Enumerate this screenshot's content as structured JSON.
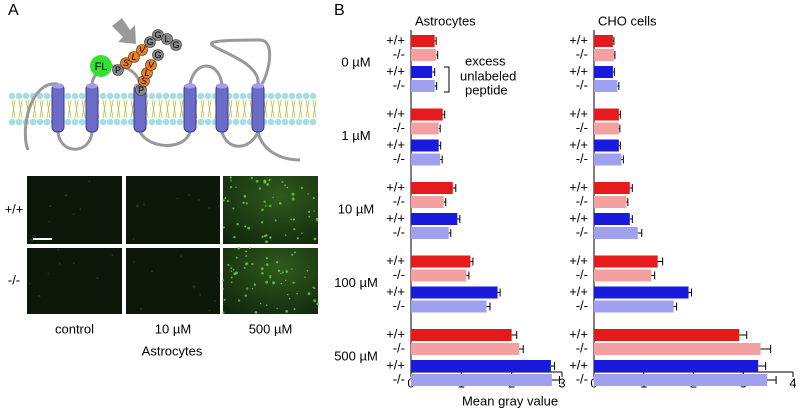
{
  "panel_a": {
    "label": "A",
    "fluorophore": "FL",
    "peptide_1": [
      "P",
      "S",
      "L",
      "V",
      "G",
      "G",
      "L",
      "G"
    ],
    "peptide_2": [
      "P",
      "S",
      "L",
      "V",
      "G"
    ],
    "images": {
      "rows": [
        "+/+",
        "-/-"
      ],
      "columns": [
        "control",
        "10 µM",
        "500 µM"
      ],
      "caption": "Astrocytes"
    }
  },
  "panel_b_label": "B",
  "annotation": [
    "excess",
    "unlabeled",
    "peptide"
  ],
  "chart_data": [
    {
      "type": "bar",
      "orientation": "horizontal",
      "title": "Astrocytes",
      "xlabel": "Mean gray value",
      "categories": [
        "0 µM",
        "1 µM",
        "10 µM",
        "100 µM",
        "500 µM"
      ],
      "xlim": [
        0,
        3
      ],
      "xticks": [
        0,
        1,
        2,
        3
      ],
      "series": [
        {
          "name": "+/+",
          "color": "#e41a1c",
          "values": [
            0.47,
            0.63,
            0.83,
            1.18,
            2.0
          ],
          "errors": [
            0.03,
            0.04,
            0.06,
            0.05,
            0.1
          ]
        },
        {
          "name": "-/-",
          "color": "#f4a0a0",
          "values": [
            0.5,
            0.55,
            0.65,
            1.1,
            2.15
          ],
          "errors": [
            0.03,
            0.03,
            0.04,
            0.05,
            0.08
          ]
        },
        {
          "name": "+/+",
          "color": "#1a1adc",
          "values": [
            0.42,
            0.55,
            0.92,
            1.72,
            2.78
          ],
          "errors": [
            0.05,
            0.04,
            0.05,
            0.05,
            0.07
          ]
        },
        {
          "name": "-/-",
          "color": "#a0a0f0",
          "values": [
            0.47,
            0.58,
            0.75,
            1.5,
            2.8
          ],
          "errors": [
            0.04,
            0.04,
            0.04,
            0.07,
            0.15
          ]
        }
      ]
    },
    {
      "type": "bar",
      "orientation": "horizontal",
      "title": "CHO cells",
      "xlim": [
        0,
        4
      ],
      "xticks": [
        0,
        1,
        2,
        3,
        4
      ],
      "series": [
        {
          "name": "+/+",
          "color": "#e41a1c",
          "values": [
            0.38,
            0.5,
            0.72,
            1.28,
            2.92
          ],
          "errors": [
            0.02,
            0.03,
            0.05,
            0.1,
            0.15
          ]
        },
        {
          "name": "-/-",
          "color": "#f4a0a0",
          "values": [
            0.4,
            0.5,
            0.65,
            1.15,
            3.35
          ],
          "errors": [
            0.02,
            0.02,
            0.03,
            0.07,
            0.2
          ]
        },
        {
          "name": "+/+",
          "color": "#1a1adc",
          "values": [
            0.38,
            0.5,
            0.72,
            1.9,
            3.3
          ],
          "errors": [
            0.03,
            0.03,
            0.05,
            0.06,
            0.15
          ]
        },
        {
          "name": "-/-",
          "color": "#a0a0f0",
          "values": [
            0.47,
            0.55,
            0.88,
            1.6,
            3.48
          ],
          "errors": [
            0.03,
            0.04,
            0.08,
            0.06,
            0.18
          ]
        }
      ]
    }
  ]
}
